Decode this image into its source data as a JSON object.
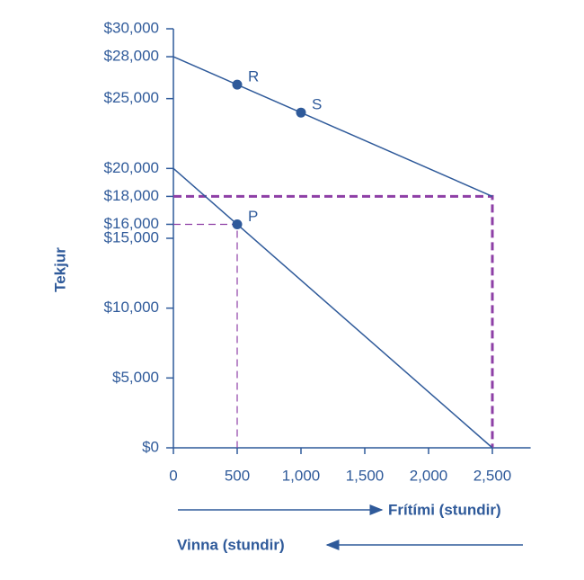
{
  "chart_data": {
    "type": "line",
    "y_label": "Tekjur",
    "x_label": "Frítími (stundir)",
    "x2_label": "Vinna (stundir)",
    "xlim": [
      0,
      2800
    ],
    "ylim": [
      0,
      30000
    ],
    "xticks": [
      0,
      500,
      {
        "value": 1000,
        "label": "1,000"
      },
      {
        "value": 1500,
        "label": "1,500"
      },
      {
        "value": 2000,
        "label": "2,000"
      },
      {
        "value": 2500,
        "label": "2,500"
      }
    ],
    "yticks": [
      {
        "value": 0,
        "label": "$0"
      },
      {
        "value": 5000,
        "label": "$5,000"
      },
      {
        "value": 10000,
        "label": "$10,000"
      },
      {
        "value": 15000,
        "label": "$15,000"
      },
      {
        "value": 16000,
        "label": "$16,000"
      },
      {
        "value": 18000,
        "label": "$18,000"
      },
      {
        "value": 20000,
        "label": "$20,000"
      },
      {
        "value": 25000,
        "label": "$25,000"
      },
      {
        "value": 28000,
        "label": "$28,000"
      },
      {
        "value": 30000,
        "label": "$30,000"
      }
    ],
    "series": [
      {
        "color": "#2f5a9a",
        "x": [
          0,
          2500
        ],
        "values": [
          28000,
          18000
        ]
      },
      {
        "color": "#2f5a9a",
        "x": [
          0,
          2500
        ],
        "values": [
          20000,
          0
        ]
      }
    ],
    "guides": [
      {
        "color": "#8e3fa6",
        "x": [
          0,
          2500,
          2500
        ],
        "values": [
          18000,
          18000,
          0
        ]
      },
      {
        "color": "#8e3fa6",
        "x": [
          0,
          500,
          500
        ],
        "values": [
          16000,
          16000,
          0
        ]
      }
    ],
    "points": [
      {
        "label": "R",
        "x": 500,
        "y": 26000,
        "color": "#2f5a9a"
      },
      {
        "label": "S",
        "x": 1000,
        "y": 24000,
        "color": "#2f5a9a"
      },
      {
        "label": "P",
        "x": 500,
        "y": 16000,
        "color": "#2f5a9a"
      }
    ]
  }
}
